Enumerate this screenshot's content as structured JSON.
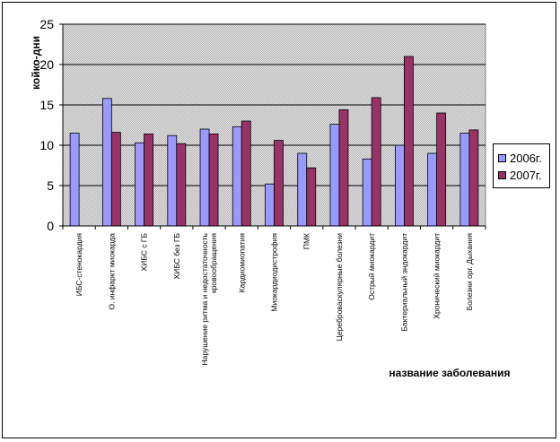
{
  "chart_data": {
    "type": "bar",
    "ylabel": "койко-дни",
    "xlabel": "название заболевания",
    "ylim": [
      0,
      25
    ],
    "yticks": [
      0,
      5,
      10,
      15,
      20,
      25
    ],
    "grid": true,
    "legend_position": "right",
    "categories": [
      "ИБС-стенокардия",
      "О. инфаркт миокарда",
      "ХИБС с ГБ",
      "ХИБС без ГБ",
      [
        "Нарушение ритма и недостаточность",
        "кровообращения"
      ],
      "Кардиомиопатия",
      "Миокардиодистрофия",
      "ПМК",
      "Цереброваскулярные болезни",
      "Острый миокардит",
      "Бактериальный эндокардит",
      "Хронический миокардит",
      "Болезни орг. Дыхания"
    ],
    "series": [
      {
        "name": "2006г.",
        "color": "#9999ff",
        "values": [
          11.5,
          15.8,
          10.3,
          11.2,
          12.0,
          12.3,
          5.2,
          9.0,
          12.6,
          8.3,
          10.0,
          9.0,
          11.5
        ]
      },
      {
        "name": "2007г.",
        "color": "#993366",
        "values": [
          null,
          11.6,
          11.4,
          10.2,
          11.4,
          13.0,
          10.6,
          7.2,
          14.4,
          15.9,
          21.0,
          14.0,
          11.9
        ]
      }
    ]
  }
}
